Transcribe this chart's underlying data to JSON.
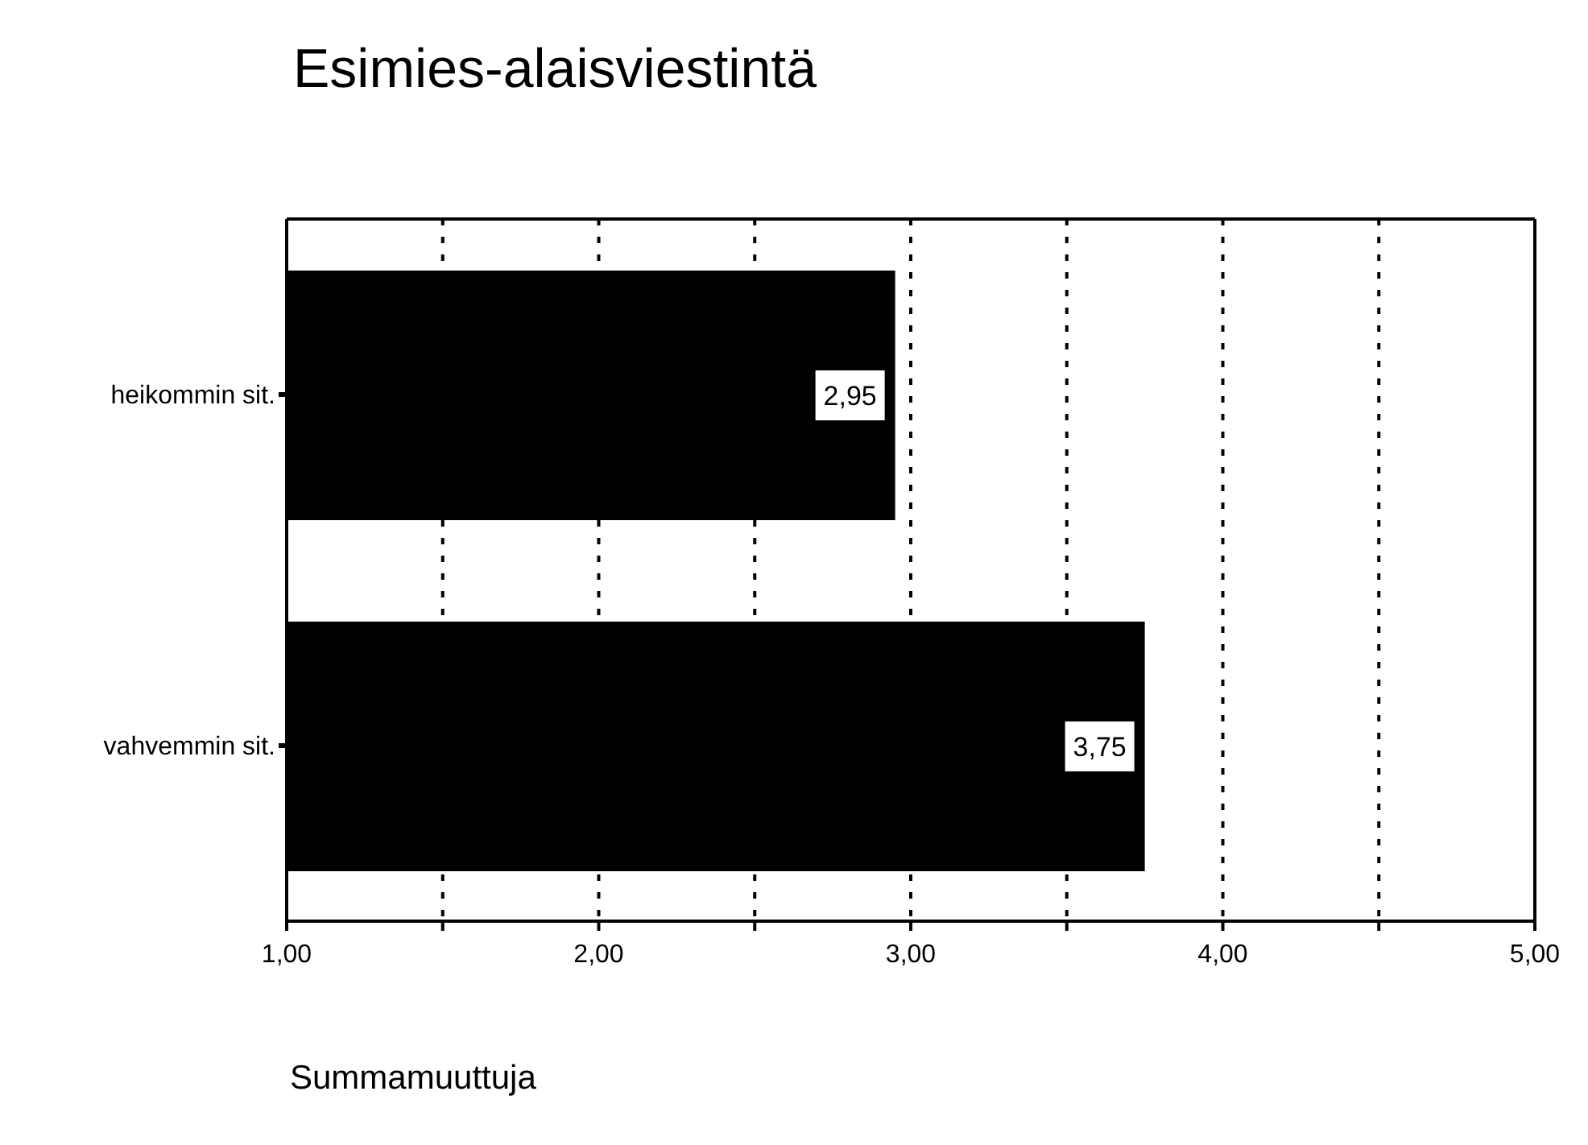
{
  "chart_data": {
    "type": "bar",
    "orientation": "horizontal",
    "title": "Esimies-alaisviestintä",
    "xlabel": "Summamuuttuja",
    "categories": [
      "heikommin sit.",
      "vahvemmin sit."
    ],
    "values": [
      2.95,
      3.75
    ],
    "value_labels": [
      "2,95",
      "3,75"
    ],
    "color": "#000000",
    "xlim": [
      1,
      5
    ],
    "xticks": [
      {
        "value": 1,
        "label": "1,00"
      },
      {
        "value": 1.5,
        "label": null
      },
      {
        "value": 2,
        "label": "2,00"
      },
      {
        "value": 2.5,
        "label": null
      },
      {
        "value": 3,
        "label": "3,00"
      },
      {
        "value": 3.5,
        "label": null
      },
      {
        "value": 4,
        "label": "4,00"
      },
      {
        "value": 4.5,
        "label": null
      },
      {
        "value": 5,
        "label": "5,00"
      }
    ],
    "grid": "x",
    "line_style": "dotted",
    "legend": false
  }
}
